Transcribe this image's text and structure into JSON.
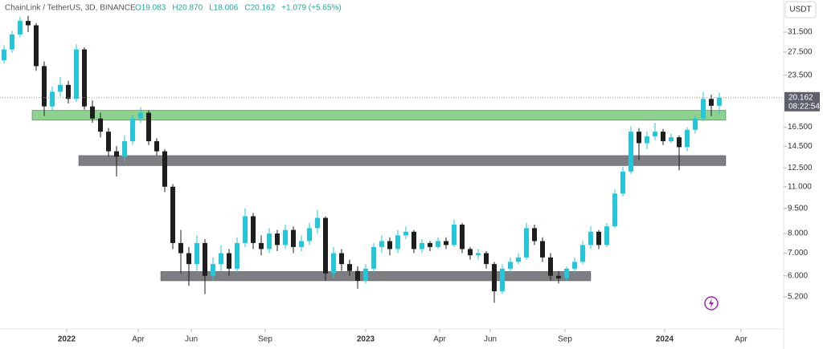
{
  "chart_data": {
    "type": "candlestick",
    "symbol": "ChainLink / TetherUS, 3D, BINANCE",
    "header_values": [
      19.083,
      20.87,
      18.006,
      20.162,
      1.079
    ],
    "header_value_labels": [
      "O19.083",
      "H20.870",
      "L18.006",
      "C20.162",
      "+1.079 (+5.65%)"
    ],
    "currency": "USDT",
    "last_price": 20.162,
    "countdown": "08:22:54",
    "log_scale": true,
    "grid": false,
    "up_color": "#26c6da",
    "down_color": "#1e1e1e",
    "ylim": [
      4.18,
      39.2
    ],
    "yticks": [
      {
        "value": 31.5,
        "label": "31.500"
      },
      {
        "value": 27.5,
        "label": "27.500"
      },
      {
        "value": 23.5,
        "label": "23.500"
      },
      {
        "value": 16.5,
        "label": "16.500"
      },
      {
        "value": 14.5,
        "label": "14.500"
      },
      {
        "value": 12.5,
        "label": "12.500"
      },
      {
        "value": 11,
        "label": "11.000"
      },
      {
        "value": 9.5,
        "label": "9.500"
      },
      {
        "value": 8,
        "label": "8.000"
      },
      {
        "value": 7,
        "label": "7.000"
      },
      {
        "value": 6,
        "label": "6.000"
      },
      {
        "value": 5.2,
        "label": "5.200"
      }
    ],
    "xlim": [
      -0.5,
      97
    ],
    "xticks": [
      {
        "value": 7.8,
        "label": "2022"
      },
      {
        "value": 16.7,
        "label": "Apr"
      },
      {
        "value": 23.3,
        "label": "Jun"
      },
      {
        "value": 32.5,
        "label": "Sep"
      },
      {
        "value": 45,
        "label": "2023"
      },
      {
        "value": 54.2,
        "label": "Apr"
      },
      {
        "value": 60.5,
        "label": "Jun"
      },
      {
        "value": 69.8,
        "label": "Sep"
      },
      {
        "value": 82.2,
        "label": "2024"
      },
      {
        "value": 91.7,
        "label": "Apr"
      }
    ],
    "zones": [
      {
        "low": 17.3,
        "high": 18.5,
        "from": 3.5,
        "to": 89.8,
        "color": "#8fd18f"
      },
      {
        "low": 12.7,
        "high": 13.6,
        "from": 9.3,
        "to": 89.8,
        "color": "#7d7d82"
      },
      {
        "low": 5.8,
        "high": 6.18,
        "from": 19.5,
        "to": 73,
        "color": "#7d7d82"
      }
    ],
    "candles": [
      [
        26,
        28.8,
        25.5,
        28
      ],
      [
        28,
        31.8,
        27.4,
        31
      ],
      [
        31,
        35,
        30.4,
        34
      ],
      [
        34,
        35.2,
        31.5,
        33
      ],
      [
        33,
        33.5,
        24.2,
        25
      ],
      [
        25,
        25.8,
        17.8,
        19
      ],
      [
        19,
        21.8,
        18.5,
        21
      ],
      [
        21,
        23.2,
        20.3,
        22
      ],
      [
        22,
        22.6,
        19.4,
        20
      ],
      [
        20,
        29,
        19.6,
        28
      ],
      [
        28,
        28.4,
        18.6,
        19
      ],
      [
        19,
        19.8,
        17,
        17.5
      ],
      [
        17.5,
        18.2,
        15.4,
        16
      ],
      [
        16,
        16.4,
        13.5,
        14
      ],
      [
        14,
        14.5,
        11.8,
        13.5
      ],
      [
        13.5,
        15.6,
        13,
        15
      ],
      [
        15,
        17.9,
        14.6,
        17.5
      ],
      [
        17.5,
        18.9,
        17,
        18.2
      ],
      [
        18.2,
        18.5,
        14.6,
        15
      ],
      [
        15,
        15.3,
        13.6,
        14
      ],
      [
        14,
        14.2,
        10.6,
        11
      ],
      [
        11,
        11.2,
        7.2,
        7.5
      ],
      [
        7.5,
        8.2,
        6.1,
        7
      ],
      [
        7,
        7.3,
        5.6,
        6.5
      ],
      [
        6.5,
        7.9,
        6.2,
        7.5
      ],
      [
        7.5,
        7.7,
        5.3,
        6
      ],
      [
        6,
        6.8,
        5.8,
        6.5
      ],
      [
        6.5,
        7.4,
        6.2,
        7
      ],
      [
        7,
        7.2,
        6,
        6.3
      ],
      [
        6.3,
        7.8,
        6.1,
        7.5
      ],
      [
        7.5,
        9.5,
        7.3,
        9
      ],
      [
        9,
        9.2,
        7.2,
        7.5
      ],
      [
        7.5,
        7.9,
        6.9,
        7.2
      ],
      [
        7.2,
        8.3,
        7,
        8
      ],
      [
        8,
        8.2,
        7.1,
        7.4
      ],
      [
        7.4,
        8.5,
        7.2,
        8.2
      ],
      [
        8.2,
        8.4,
        7,
        7.3
      ],
      [
        7.3,
        7.9,
        7.1,
        7.6
      ],
      [
        7.6,
        8.6,
        7.4,
        8.3
      ],
      [
        8.3,
        9.4,
        8,
        8.9
      ],
      [
        8.9,
        9,
        5.8,
        6.1
      ],
      [
        6.1,
        7.3,
        5.9,
        7
      ],
      [
        7,
        7.2,
        6.2,
        6.5
      ],
      [
        6.5,
        6.7,
        6,
        6.2
      ],
      [
        6.2,
        6.4,
        5.5,
        5.8
      ],
      [
        5.8,
        6.5,
        5.7,
        6.3
      ],
      [
        6.3,
        7.5,
        6.1,
        7.3
      ],
      [
        7.3,
        7.9,
        7,
        7.6
      ],
      [
        7.6,
        7.8,
        6.9,
        7.2
      ],
      [
        7.2,
        8.2,
        7,
        7.9
      ],
      [
        7.9,
        8.4,
        7.7,
        8.1
      ],
      [
        8.1,
        8.2,
        7,
        7.2
      ],
      [
        7.2,
        7.7,
        7,
        7.5
      ],
      [
        7.5,
        7.6,
        7.1,
        7.3
      ],
      [
        7.3,
        7.8,
        7.2,
        7.6
      ],
      [
        7.6,
        7.8,
        7.2,
        7.4
      ],
      [
        7.4,
        8.8,
        7.3,
        8.5
      ],
      [
        8.5,
        8.6,
        7,
        7.2
      ],
      [
        7.2,
        7.3,
        6.7,
        6.9
      ],
      [
        6.9,
        7.2,
        6.7,
        7
      ],
      [
        7,
        7.1,
        6.3,
        6.5
      ],
      [
        6.5,
        6.6,
        5,
        5.4
      ],
      [
        5.4,
        6.5,
        5.3,
        6.3
      ],
      [
        6.3,
        6.8,
        6.1,
        6.6
      ],
      [
        6.6,
        7,
        6.5,
        6.8
      ],
      [
        6.8,
        8.6,
        6.7,
        8.3
      ],
      [
        8.3,
        8.5,
        7.4,
        7.6
      ],
      [
        7.6,
        7.8,
        6.6,
        6.8
      ],
      [
        6.8,
        7,
        5.8,
        6
      ],
      [
        6,
        6.2,
        5.7,
        5.9
      ],
      [
        5.9,
        6.4,
        5.8,
        6.3
      ],
      [
        6.3,
        6.8,
        6.1,
        6.6
      ],
      [
        6.6,
        7.6,
        6.5,
        7.4
      ],
      [
        7.4,
        8.4,
        7.2,
        8.1
      ],
      [
        8.1,
        8.2,
        7.2,
        7.4
      ],
      [
        7.4,
        8.6,
        7.3,
        8.4
      ],
      [
        8.4,
        10.8,
        8.3,
        10.5
      ],
      [
        10.5,
        12.6,
        10.3,
        12.2
      ],
      [
        12.2,
        16.6,
        12,
        16
      ],
      [
        16,
        16.4,
        13.2,
        14.8
      ],
      [
        14.8,
        16,
        14.2,
        15.5
      ],
      [
        15.5,
        17,
        15.1,
        16
      ],
      [
        16,
        16.3,
        14.6,
        15
      ],
      [
        15,
        15.8,
        14.8,
        15.4
      ],
      [
        15.4,
        15.6,
        12.3,
        14.4
      ],
      [
        14.4,
        16.5,
        14,
        16.2
      ],
      [
        16.2,
        17.8,
        15.8,
        17.5
      ],
      [
        17.5,
        21,
        17.2,
        20
      ],
      [
        20,
        20.6,
        17.8,
        19.083
      ],
      [
        19.083,
        20.87,
        18.006,
        20.162
      ]
    ]
  }
}
